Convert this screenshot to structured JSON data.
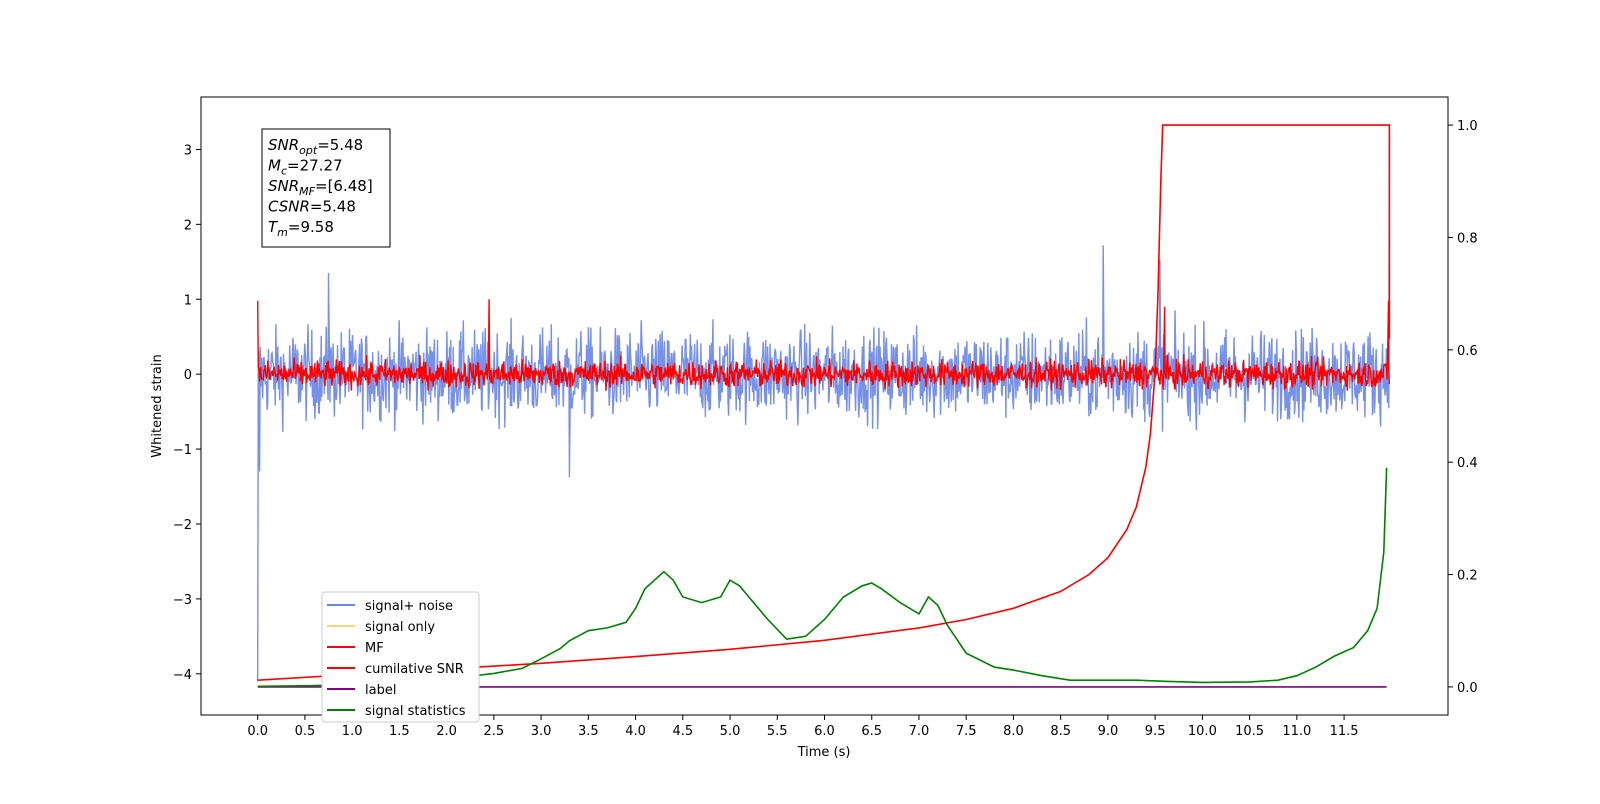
{
  "chart_data": {
    "type": "line",
    "xlabel": "Time (s)",
    "ylabel_left": "Whitened strain",
    "ylabel_right": "",
    "xlim": [
      -0.6,
      12.6
    ],
    "ylim_left": [
      -4.55,
      3.7
    ],
    "ylim_right": [
      -0.05,
      1.05
    ],
    "x_ticks": [
      0.0,
      0.5,
      1.0,
      1.5,
      2.0,
      2.5,
      3.0,
      3.5,
      4.0,
      4.5,
      5.0,
      5.5,
      6.0,
      6.5,
      7.0,
      7.5,
      8.0,
      8.5,
      9.0,
      9.5,
      10.0,
      10.5,
      11.0,
      11.5
    ],
    "x_tick_labels": [
      "0.0",
      "0.5",
      "1.0",
      "1.5",
      "2.0",
      "2.5",
      "3.0",
      "3.5",
      "4.0",
      "4.5",
      "5.0",
      "5.5",
      "6.0",
      "6.5",
      "7.0",
      "7.5",
      "8.0",
      "8.5",
      "9.0",
      "9.5",
      "10.0",
      "10.5",
      "11.0",
      "11.5"
    ],
    "y_ticks_left": [
      -4,
      -3,
      -2,
      -1,
      0,
      1,
      2,
      3
    ],
    "y_tick_labels_left": [
      "−4",
      "−3",
      "−2",
      "−1",
      "0",
      "1",
      "2",
      "3"
    ],
    "y_ticks_right": [
      0.0,
      0.2,
      0.4,
      0.6,
      0.8,
      1.0
    ],
    "y_tick_labels_right": [
      "0.0",
      "0.2",
      "0.4",
      "0.6",
      "0.8",
      "1.0"
    ],
    "grid": false,
    "legend_position": "lower-left",
    "info_box": {
      "lines": [
        {
          "sym": "SNR",
          "sub": "opt",
          "rest": "=5.48"
        },
        {
          "sym": "M",
          "sub": "c",
          "rest": "=27.27"
        },
        {
          "sym": "SNR",
          "sub": "MF",
          "rest": "=[6.48]"
        },
        {
          "sym": "CSNR",
          "sub": "",
          "rest": "=5.48"
        },
        {
          "sym": "T",
          "sub": "m",
          "rest": "=9.58"
        }
      ]
    },
    "series": [
      {
        "name": "signal+ noise",
        "axis": "left",
        "color": "#6b87e6",
        "kind": "noise",
        "t_start": 0.0,
        "t_end": 11.98,
        "amplitude": 0.42,
        "spikes": [
          [
            0.0,
            -4.1
          ],
          [
            0.02,
            -1.3
          ],
          [
            0.75,
            1.35
          ],
          [
            3.3,
            -1.38
          ],
          [
            8.95,
            1.72
          ],
          [
            9.55,
            1.52
          ],
          [
            11.98,
            3.25
          ]
        ]
      },
      {
        "name": "signal only",
        "axis": "left",
        "color": "#ffd37a",
        "points": []
      },
      {
        "name": "MF",
        "axis": "left",
        "color": "#ff0000",
        "kind": "noise",
        "t_start": 0.0,
        "t_end": 11.98,
        "amplitude": 0.13,
        "spikes": [
          [
            0.0,
            0.98
          ],
          [
            2.45,
            1.0
          ],
          [
            9.6,
            0.9
          ],
          [
            11.97,
            0.98
          ]
        ]
      },
      {
        "name": "cumilative SNR",
        "axis": "right",
        "color": "#ff0000",
        "points": [
          [
            0.0,
            0.012
          ],
          [
            1.0,
            0.022
          ],
          [
            2.0,
            0.032
          ],
          [
            3.0,
            0.042
          ],
          [
            4.0,
            0.054
          ],
          [
            5.0,
            0.067
          ],
          [
            6.0,
            0.083
          ],
          [
            7.0,
            0.105
          ],
          [
            7.5,
            0.12
          ],
          [
            8.0,
            0.14
          ],
          [
            8.5,
            0.17
          ],
          [
            8.8,
            0.2
          ],
          [
            9.0,
            0.23
          ],
          [
            9.2,
            0.28
          ],
          [
            9.3,
            0.32
          ],
          [
            9.4,
            0.39
          ],
          [
            9.45,
            0.45
          ],
          [
            9.5,
            0.56
          ],
          [
            9.53,
            0.7
          ],
          [
            9.56,
            0.9
          ],
          [
            9.58,
            1.0
          ],
          [
            11.98,
            1.0
          ],
          [
            11.98,
            0.62
          ]
        ]
      },
      {
        "name": "label",
        "axis": "right",
        "color": "#800080",
        "points": [
          [
            0.0,
            0.0
          ],
          [
            11.95,
            0.0
          ]
        ]
      },
      {
        "name": "signal statistics",
        "axis": "right",
        "color": "#008000",
        "points": [
          [
            0.0,
            0.001
          ],
          [
            0.5,
            0.002
          ],
          [
            1.0,
            0.004
          ],
          [
            1.5,
            0.008
          ],
          [
            2.0,
            0.014
          ],
          [
            2.5,
            0.024
          ],
          [
            2.8,
            0.033
          ],
          [
            3.0,
            0.05
          ],
          [
            3.2,
            0.068
          ],
          [
            3.3,
            0.082
          ],
          [
            3.5,
            0.1
          ],
          [
            3.7,
            0.105
          ],
          [
            3.9,
            0.115
          ],
          [
            4.0,
            0.14
          ],
          [
            4.1,
            0.175
          ],
          [
            4.2,
            0.19
          ],
          [
            4.3,
            0.205
          ],
          [
            4.4,
            0.19
          ],
          [
            4.5,
            0.16
          ],
          [
            4.7,
            0.15
          ],
          [
            4.9,
            0.16
          ],
          [
            5.0,
            0.19
          ],
          [
            5.1,
            0.18
          ],
          [
            5.2,
            0.16
          ],
          [
            5.4,
            0.12
          ],
          [
            5.6,
            0.085
          ],
          [
            5.8,
            0.09
          ],
          [
            6.0,
            0.12
          ],
          [
            6.2,
            0.16
          ],
          [
            6.4,
            0.18
          ],
          [
            6.5,
            0.185
          ],
          [
            6.6,
            0.175
          ],
          [
            6.8,
            0.15
          ],
          [
            7.0,
            0.13
          ],
          [
            7.1,
            0.16
          ],
          [
            7.2,
            0.145
          ],
          [
            7.3,
            0.11
          ],
          [
            7.5,
            0.06
          ],
          [
            7.8,
            0.035
          ],
          [
            8.0,
            0.03
          ],
          [
            8.3,
            0.02
          ],
          [
            8.6,
            0.012
          ],
          [
            9.0,
            0.012
          ],
          [
            9.3,
            0.012
          ],
          [
            9.6,
            0.01
          ],
          [
            10.0,
            0.008
          ],
          [
            10.5,
            0.009
          ],
          [
            10.8,
            0.012
          ],
          [
            11.0,
            0.02
          ],
          [
            11.2,
            0.035
          ],
          [
            11.4,
            0.055
          ],
          [
            11.6,
            0.07
          ],
          [
            11.75,
            0.1
          ],
          [
            11.85,
            0.14
          ],
          [
            11.92,
            0.24
          ],
          [
            11.95,
            0.39
          ]
        ]
      }
    ]
  }
}
